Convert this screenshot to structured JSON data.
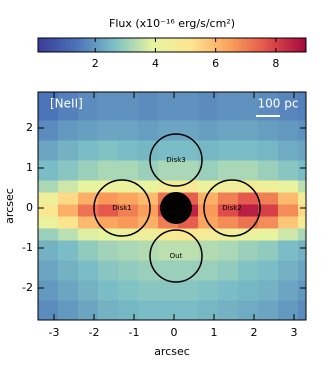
{
  "chart_data": {
    "type": "heatmap",
    "colorbar_label": "Flux (x10⁻¹⁶ erg/s/cm²)",
    "clim": [
      0.1,
      9
    ],
    "cticks": [
      2,
      4,
      6,
      8
    ],
    "colormap": [
      "#3a3d98",
      "#4b72b8",
      "#7cc0c6",
      "#e6f4a0",
      "#fee590",
      "#fba25c",
      "#e2504a",
      "#a5083e"
    ],
    "xlabel": "arcsec",
    "ylabel": "arcsec",
    "xlim": [
      -3.4,
      3.3
    ],
    "ylim": [
      -2.8,
      2.9
    ],
    "xticks": [
      -3,
      -2,
      -1,
      0,
      1,
      2,
      3
    ],
    "yticks": [
      -2,
      -1,
      0,
      1,
      2
    ],
    "x_edges": [
      -3.4,
      -2.9,
      -2.4,
      -1.9,
      -1.4,
      -0.9,
      -0.4,
      0.1,
      0.6,
      1.1,
      1.6,
      2.1,
      2.6,
      3.1,
      3.3
    ],
    "y_edges": [
      -2.8,
      -2.3,
      -1.8,
      -1.3,
      -0.8,
      -0.5,
      -0.2,
      0.1,
      0.4,
      0.7,
      1.2,
      1.7,
      2.2,
      2.9
    ],
    "z": [
      [
        1.8,
        2.0,
        2.2,
        2.4,
        2.5,
        2.6,
        2.6,
        2.6,
        2.5,
        2.4,
        2.3,
        2.2,
        2.0,
        1.8
      ],
      [
        2.0,
        2.2,
        2.4,
        2.6,
        2.7,
        2.8,
        2.8,
        2.8,
        2.7,
        2.6,
        2.5,
        2.4,
        2.2,
        2.0
      ],
      [
        2.2,
        2.4,
        2.6,
        2.8,
        2.9,
        3.0,
        3.0,
        3.0,
        3.0,
        2.9,
        2.7,
        2.6,
        2.4,
        2.2
      ],
      [
        2.4,
        2.6,
        2.9,
        3.1,
        3.2,
        3.3,
        3.4,
        3.4,
        3.3,
        3.2,
        3.0,
        2.9,
        2.6,
        2.4
      ],
      [
        3.0,
        3.4,
        3.8,
        4.0,
        4.2,
        4.4,
        4.8,
        5.0,
        4.6,
        4.4,
        4.2,
        4.0,
        3.6,
        3.2
      ],
      [
        4.2,
        5.2,
        6.0,
        6.4,
        6.6,
        6.2,
        7.0,
        7.5,
        6.4,
        6.8,
        7.2,
        6.8,
        5.8,
        4.8
      ],
      [
        5.0,
        6.2,
        7.2,
        7.6,
        7.0,
        6.5,
        8.0,
        8.5,
        6.6,
        7.8,
        8.6,
        8.0,
        6.8,
        5.4
      ],
      [
        4.4,
        5.4,
        6.2,
        6.6,
        6.4,
        6.0,
        7.2,
        7.5,
        6.2,
        7.0,
        7.6,
        7.0,
        6.0,
        4.6
      ],
      [
        3.2,
        3.6,
        4.0,
        4.2,
        4.2,
        4.0,
        4.6,
        4.8,
        4.2,
        4.4,
        4.6,
        4.4,
        4.0,
        3.4
      ],
      [
        2.6,
        2.8,
        3.0,
        3.2,
        3.2,
        3.0,
        3.2,
        3.2,
        3.0,
        3.2,
        3.2,
        3.0,
        2.8,
        2.6
      ],
      [
        2.2,
        2.4,
        2.6,
        2.7,
        2.6,
        2.5,
        2.6,
        2.6,
        2.5,
        2.6,
        2.6,
        2.5,
        2.3,
        2.2
      ],
      [
        1.8,
        2.0,
        2.1,
        2.2,
        2.2,
        2.1,
        2.2,
        2.2,
        2.1,
        2.2,
        2.2,
        2.1,
        2.0,
        1.9
      ],
      [
        1.4,
        1.6,
        1.8,
        1.9,
        1.9,
        1.8,
        1.9,
        1.9,
        1.8,
        1.9,
        1.9,
        1.8,
        1.7,
        1.6
      ]
    ],
    "line_label": "[NeII]",
    "scale_label": "100 pc",
    "regions": [
      {
        "label": "Disk1",
        "x": -1.3,
        "y": 0,
        "r": 0.7
      },
      {
        "label": "Disk2",
        "x": 1.45,
        "y": 0,
        "r": 0.7
      },
      {
        "label": "Disk3",
        "x": 0.05,
        "y": 1.2,
        "r": 0.65
      },
      {
        "label": "Out",
        "x": 0.05,
        "y": -1.2,
        "r": 0.65
      },
      {
        "x": 0.05,
        "y": 0,
        "r": 0.38,
        "filled": true
      }
    ]
  }
}
